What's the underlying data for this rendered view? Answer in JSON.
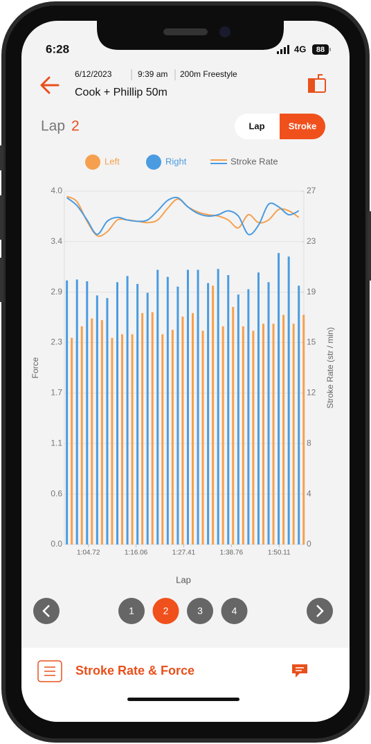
{
  "status": {
    "time": "6:28",
    "network": "4G",
    "battery": "88"
  },
  "header": {
    "date": "6/12/2023",
    "time": "9:39 am",
    "event": "200m Freestyle",
    "title": "Cook + Phillip 50m"
  },
  "lap": {
    "label": "Lap",
    "number": "2"
  },
  "toggle": {
    "options": [
      "Lap",
      "Stroke"
    ],
    "active": 1
  },
  "chart_data": {
    "type": "bar",
    "x_label": "Lap",
    "y_label": "Force",
    "y2_label": "Stroke Rate (str / min)",
    "stroke_rate_label": "Stroke Rate",
    "x": [
      59.6,
      62.0,
      64.4,
      66.8,
      69.2,
      71.6,
      74.0,
      76.4,
      78.8,
      81.2,
      83.6,
      86.0,
      88.4,
      90.8,
      93.2,
      95.6,
      98.0,
      100.4,
      102.8,
      105.2,
      107.6,
      110.0,
      112.4,
      114.8
    ],
    "xlim": [
      59.0,
      116.0
    ],
    "xticks": [
      {
        "value": 64.72,
        "label": "1:04.72"
      },
      {
        "value": 76.06,
        "label": "1:16.06"
      },
      {
        "value": 87.41,
        "label": "1:27.41"
      },
      {
        "value": 98.76,
        "label": "1:38.76"
      },
      {
        "value": 110.11,
        "label": "1:50.11"
      }
    ],
    "ylim": [
      0,
      4.0
    ],
    "yticks": [
      {
        "value": 0,
        "label": "0.0"
      },
      {
        "value": 0.571,
        "label": "0.6"
      },
      {
        "value": 1.143,
        "label": "1.1"
      },
      {
        "value": 1.714,
        "label": "1.7"
      },
      {
        "value": 2.286,
        "label": "2.3"
      },
      {
        "value": 2.857,
        "label": "2.9"
      },
      {
        "value": 3.429,
        "label": "3.4"
      },
      {
        "value": 4.0,
        "label": "4.0"
      }
    ],
    "y2lim": [
      0,
      27
    ],
    "y2ticks": [
      0,
      {
        "value": 3.857,
        "label": "4"
      },
      {
        "value": 7.714,
        "label": "8"
      },
      {
        "value": 11.571,
        "label": "12"
      },
      {
        "value": 15.429,
        "label": "15"
      },
      {
        "value": 19.286,
        "label": "19"
      },
      {
        "value": 23.143,
        "label": "23"
      },
      27
    ],
    "grid": true,
    "series": [
      {
        "name": "Left",
        "color": "#f5a04f",
        "values": [
          2.34,
          2.47,
          2.56,
          2.54,
          2.34,
          2.38,
          2.38,
          2.62,
          2.63,
          2.38,
          2.43,
          2.58,
          2.62,
          2.42,
          2.93,
          2.47,
          2.69,
          2.47,
          2.42,
          2.5,
          2.5,
          2.6,
          2.5,
          2.6
        ],
        "stroke_rate": [
          26.6,
          26.2,
          24.7,
          23.6,
          23.9,
          24.8,
          24.8,
          24.7,
          24.6,
          24.8,
          25.7,
          26.4,
          25.8,
          25.4,
          25.2,
          25.1,
          24.8,
          24.2,
          25.2,
          24.6,
          24.8,
          25.6,
          25.5,
          25.0
        ]
      },
      {
        "name": "Right",
        "color": "#4a9be0",
        "values": [
          2.99,
          3.0,
          2.98,
          2.82,
          2.79,
          2.97,
          3.04,
          2.95,
          2.85,
          3.11,
          3.03,
          2.92,
          3.11,
          3.11,
          2.96,
          3.12,
          3.05,
          2.83,
          2.89,
          3.08,
          2.97,
          3.3,
          3.26,
          2.93
        ],
        "stroke_rate": [
          26.5,
          25.9,
          24.8,
          23.7,
          24.7,
          25.0,
          24.8,
          24.7,
          24.8,
          25.5,
          26.3,
          26.5,
          25.8,
          25.3,
          25.1,
          25.2,
          25.5,
          25.1,
          23.7,
          24.4,
          26.0,
          25.8,
          25.2,
          25.5
        ]
      }
    ]
  },
  "pagination": {
    "pages": [
      "1",
      "2",
      "3",
      "4"
    ],
    "active": 1
  },
  "footer": {
    "title": "Stroke Rate & Force"
  }
}
